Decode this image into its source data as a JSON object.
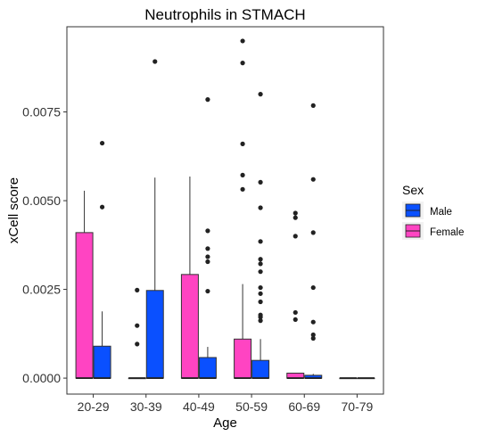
{
  "chart_data": {
    "type": "boxplot",
    "title": "Neutrophils in STMACH",
    "xlabel": "Age",
    "ylabel": "xCell score",
    "categories": [
      "20-29",
      "30-39",
      "40-49",
      "50-59",
      "60-69",
      "70-79"
    ],
    "ylim": [
      -0.00045,
      0.0099
    ],
    "yticks": [
      0.0,
      0.0025,
      0.005,
      0.0075
    ],
    "ytick_labels": [
      "0.0000",
      "0.0025",
      "0.0050",
      "0.0075"
    ],
    "grid": false,
    "legend": {
      "title": "Sex",
      "placement": "right",
      "entries": [
        "Male",
        "Female"
      ]
    },
    "series": [
      {
        "name": "Female",
        "color": "#FF44C2",
        "boxes": [
          {
            "q1": 0.0,
            "median": 0.0,
            "q3": 0.0041,
            "whisker_low": 0.0,
            "whisker_high": 0.00528,
            "outliers": []
          },
          {
            "q1": 0.0,
            "median": 0.0,
            "q3": 0.0,
            "whisker_low": 0.0,
            "whisker_high": 0.0,
            "outliers": [
              0.00248,
              0.00148,
              0.00096
            ]
          },
          {
            "q1": 0.0,
            "median": 0.0,
            "q3": 0.00292,
            "whisker_low": 0.0,
            "whisker_high": 0.00568,
            "outliers": []
          },
          {
            "q1": 0.0,
            "median": 0.0,
            "q3": 0.0011,
            "whisker_low": 0.0,
            "whisker_high": 0.00265,
            "outliers": [
              0.0095,
              0.00888,
              0.0066,
              0.00572,
              0.00532
            ]
          },
          {
            "q1": 0.0,
            "median": 0.0,
            "q3": 0.00014,
            "whisker_low": 0.0,
            "whisker_high": 0.00014,
            "outliers": [
              0.00465,
              0.00452,
              0.004,
              0.00185,
              0.00165
            ]
          },
          {
            "q1": 0.0,
            "median": 0.0,
            "q3": 0.0,
            "whisker_low": 0.0,
            "whisker_high": 0.0,
            "outliers": []
          }
        ]
      },
      {
        "name": "Male",
        "color": "#0A50FF",
        "boxes": [
          {
            "q1": 0.0,
            "median": 0.0,
            "q3": 0.0009,
            "whisker_low": 0.0,
            "whisker_high": 0.00188,
            "outliers": [
              0.00662,
              0.00482
            ]
          },
          {
            "q1": 0.0,
            "median": 0.0,
            "q3": 0.00247,
            "whisker_low": 0.0,
            "whisker_high": 0.00565,
            "outliers": [
              0.00892
            ]
          },
          {
            "q1": 0.0,
            "median": 0.0,
            "q3": 0.00058,
            "whisker_low": 0.0,
            "whisker_high": 0.00088,
            "outliers": [
              0.00785,
              0.00415,
              0.00365,
              0.00342,
              0.00328,
              0.00245
            ]
          },
          {
            "q1": 0.0,
            "median": 0.0,
            "q3": 0.0005,
            "whisker_low": 0.0,
            "whisker_high": 0.0011,
            "outliers": [
              0.008,
              0.00552,
              0.0048,
              0.00385,
              0.00335,
              0.00322,
              0.003,
              0.00255,
              0.00238,
              0.00215,
              0.00178,
              0.00172,
              0.00162
            ]
          },
          {
            "q1": 0.0,
            "median": 0.0,
            "q3": 8e-05,
            "whisker_low": 0.0,
            "whisker_high": 0.00012,
            "outliers": [
              0.00768,
              0.0056,
              0.0041,
              0.00255,
              0.00158,
              0.00122,
              0.00112
            ]
          },
          {
            "q1": 0.0,
            "median": 0.0,
            "q3": 0.0,
            "whisker_low": 0.0,
            "whisker_high": 0.0,
            "outliers": []
          }
        ]
      }
    ]
  }
}
